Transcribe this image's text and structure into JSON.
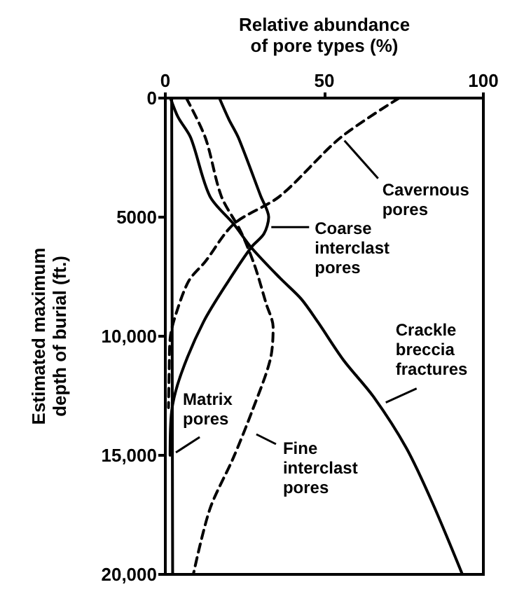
{
  "chart_data": {
    "type": "line",
    "xlabel": "Relative abundance\nof pore types (%)",
    "ylabel": "Estimated maximum\ndepth of burial (ft.)",
    "xlim": [
      0,
      100
    ],
    "xticks": [
      0,
      50,
      100
    ],
    "ylim": [
      20000,
      0
    ],
    "yticks": [
      0,
      5000,
      {
        "value": 10000,
        "label": "10,000"
      },
      {
        "value": 15000,
        "label": "15,000"
      },
      {
        "value": 20000,
        "label": "20,000"
      }
    ],
    "marker": "none",
    "series": [
      {
        "color": "#000000",
        "line_style": "dashed",
        "x": [
          73.5,
          55,
          36,
          21.5,
          12.6,
          7.5,
          4,
          1.6,
          1.2,
          1
        ],
        "values": [
          0,
          1670,
          4120,
          5290,
          6860,
          7650,
          8800,
          10000,
          11500,
          13000
        ]
      },
      {
        "color": "#000000",
        "line_style": "solid",
        "x": [
          17,
          20,
          23,
          30,
          32.5,
          31,
          27,
          20,
          12,
          5,
          2,
          1.5
        ],
        "values": [
          0,
          900,
          1670,
          4120,
          5000,
          5700,
          6270,
          7650,
          9400,
          11570,
          13140,
          15000
        ]
      },
      {
        "color": "#000000",
        "line_style": "solid",
        "x": [
          1.6,
          4,
          8,
          14,
          21.5,
          27,
          36,
          42.7,
          48,
          56,
          65.5,
          75.8,
          84,
          93.4
        ],
        "values": [
          0,
          800,
          1670,
          4120,
          5290,
          6270,
          7550,
          8430,
          9410,
          11000,
          12550,
          14700,
          17000,
          20000
        ]
      },
      {
        "color": "#000000",
        "line_style": "solid",
        "x": [
          2,
          2.3
        ],
        "values": [
          0,
          20000
        ]
      },
      {
        "color": "#000000",
        "line_style": "dashed",
        "x": [
          6.6,
          12.6,
          17.6,
          23.6,
          28,
          31.7,
          33.9,
          33,
          27.3,
          21.4,
          14,
          8.8
        ],
        "values": [
          0,
          1670,
          4120,
          5570,
          7000,
          8630,
          9610,
          10980,
          13140,
          15100,
          17260,
          20000
        ]
      }
    ],
    "annotations": [
      {
        "text": "Cavernous\npores",
        "x": 55,
        "y": 1670
      },
      {
        "text": "Coarse\ninterclast\npores",
        "x": 32,
        "y": 5300
      },
      {
        "text": "Crackle\nbreccia\nfractures",
        "x": 68,
        "y": 12900
      },
      {
        "text": "Matrix\npores",
        "x": 2,
        "y": 15000
      },
      {
        "text": "Fine\ninterclast\npores",
        "x": 27.3,
        "y": 14000
      }
    ]
  }
}
